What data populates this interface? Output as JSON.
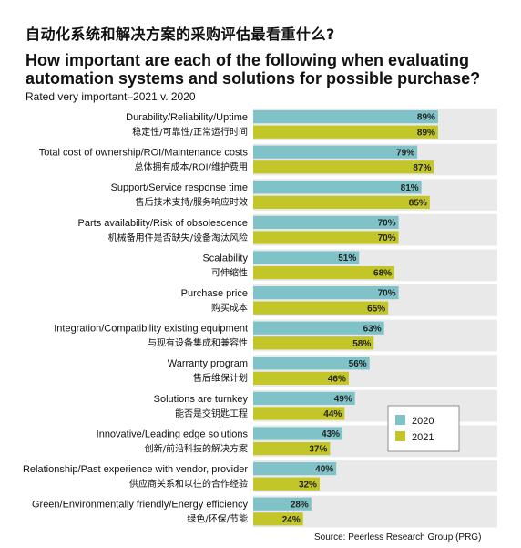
{
  "title_cn": "自动化系统和解决方案的采购评估最看重什么?",
  "title_en": "How important are each of the following when evaluating automation systems and solutions for possible purchase?",
  "subtitle": "Rated very important–2021 v. 2020",
  "source": "Source: Peerless Research Group (PRG)",
  "colors": {
    "2020": "#7fc3c8",
    "2021": "#c3c628",
    "panel": "#e9e9e9"
  },
  "chart_data": {
    "type": "bar",
    "orientation": "horizontal",
    "categories": [
      "Durability/Reliability/Uptime",
      "Total cost of ownership/ROI/Maintenance costs",
      "Support/Service response time",
      "Parts availability/Risk of obsolescence",
      "Scalability",
      "Purchase price",
      "Integration/Compatibility existing equipment",
      "Warranty program",
      "Solutions are turnkey",
      "Innovative/Leading edge solutions",
      "Relationship/Past experience with vendor, provider",
      "Green/Environmentally friendly/Energy efficiency"
    ],
    "categories_cn": [
      "稳定性/可靠性/正常运行时间",
      "总体拥有成本/ROI/维护费用",
      "售后技术支持/服务响应时效",
      "机械备用件是否缺失/设备淘汰风险",
      "可伸缩性",
      "购买成本",
      "与现有设备集成和兼容性",
      "售后维保计划",
      "能否是交钥匙工程",
      "创新/前沿科技的解决方案",
      "供应商关系和以往的合作经验",
      "绿色/环保/节能"
    ],
    "series": [
      {
        "name": "2020",
        "values": [
          89,
          79,
          81,
          70,
          51,
          70,
          63,
          56,
          49,
          43,
          40,
          28
        ]
      },
      {
        "name": "2021",
        "values": [
          89,
          87,
          85,
          70,
          68,
          65,
          58,
          46,
          44,
          37,
          32,
          24
        ]
      }
    ],
    "value_suffix": "%",
    "xlim": [
      0,
      100
    ],
    "legend_position": "bottom-right",
    "grid": false
  }
}
